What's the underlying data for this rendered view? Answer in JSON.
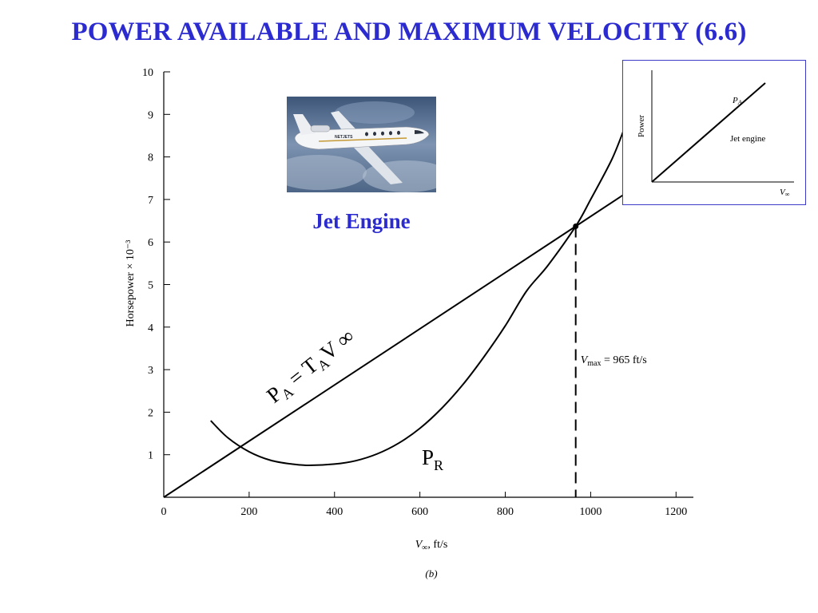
{
  "slide_title": "POWER AVAILABLE AND MAXIMUM VELOCITY (6.6)",
  "photo_caption": "Jet Engine",
  "photo_text": "NETJETS",
  "colors": {
    "title": "#2b2bd0",
    "inset_border": "#3b3bc8",
    "curve": "#000000"
  },
  "chart_data": [
    {
      "type": "line",
      "xlabel": "V∞, ft/s",
      "ylabel": "Horsepower × 10⁻³",
      "caption": "(b)",
      "xlim": [
        0,
        1250
      ],
      "ylim": [
        0,
        10
      ],
      "x_ticks": [
        0,
        200,
        400,
        600,
        800,
        1000,
        1200
      ],
      "y_ticks": [
        1,
        2,
        3,
        4,
        5,
        6,
        7,
        8,
        9,
        10
      ],
      "grid": false,
      "series": [
        {
          "name": "PA = TA V∞",
          "label_main": "P",
          "label_sub1": "A",
          "label_mid": " = T",
          "label_sub2": "A",
          "label_end": "V ∞",
          "x": [
            0,
            200,
            400,
            600,
            800,
            965,
            1080
          ],
          "y": [
            0,
            1.32,
            2.64,
            3.96,
            5.28,
            6.37,
            7.13
          ]
        },
        {
          "name": "PR",
          "label_main": "P",
          "label_sub1": "R",
          "x": [
            110,
            150,
            200,
            250,
            300,
            340,
            400,
            450,
            500,
            550,
            600,
            650,
            700,
            750,
            800,
            850,
            900,
            965,
            1000,
            1050,
            1080
          ],
          "y": [
            1.8,
            1.4,
            1.07,
            0.87,
            0.78,
            0.75,
            0.78,
            0.86,
            1.02,
            1.27,
            1.62,
            2.08,
            2.64,
            3.3,
            4.03,
            4.85,
            5.45,
            6.37,
            7.0,
            7.95,
            8.7
          ]
        }
      ],
      "annotation": {
        "label_v": "V",
        "label_sub": "max",
        "label_rest": " = 965 ft/s",
        "x": 965,
        "y": 6.37
      }
    },
    {
      "type": "line",
      "xlabel": "V∞",
      "ylabel": "Power",
      "series": [
        {
          "name": "PA",
          "label_main": "P",
          "label_sub": "A",
          "x": [
            0,
            1
          ],
          "y": [
            0,
            0.87
          ]
        }
      ],
      "annotation": "Jet engine"
    }
  ]
}
